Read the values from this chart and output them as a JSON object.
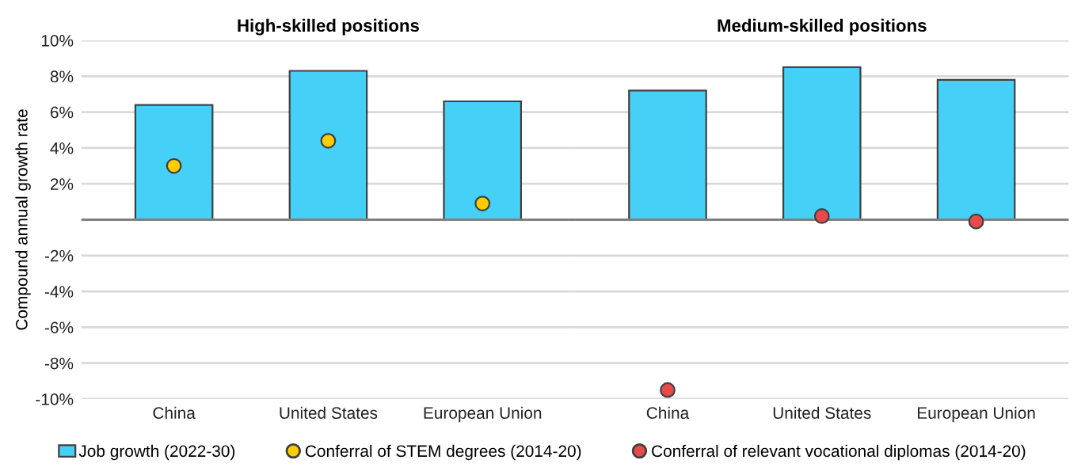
{
  "chart_data": [
    {
      "type": "bar",
      "title": "High-skilled positions",
      "ylabel": "Compound annual growth rate",
      "categories": [
        "China",
        "United States",
        "European Union"
      ],
      "series": [
        {
          "name": "Job growth (2022-30)",
          "color": "#45d0f7",
          "values": [
            6.4,
            8.3,
            6.6
          ]
        },
        {
          "name": "Conferral of STEM degrees (2014-20)",
          "type": "scatter",
          "color": "#ffcc00",
          "values": [
            3.0,
            4.4,
            0.9
          ]
        }
      ],
      "ylim": [
        -10,
        10
      ],
      "yticks": [
        {
          "value": 10,
          "label": "10%"
        },
        {
          "value": 8,
          "label": "8%"
        },
        {
          "value": 6,
          "label": "6%"
        },
        {
          "value": 4,
          "label": "4%"
        },
        {
          "value": 2,
          "label": "2%"
        },
        {
          "value": 0,
          "label": null
        },
        {
          "value": -2,
          "label": "-2%"
        },
        {
          "value": -4,
          "label": "-4%"
        },
        {
          "value": -6,
          "label": "-6%"
        },
        {
          "value": -8,
          "label": "-8%"
        },
        {
          "value": -10,
          "label": "-10%"
        }
      ],
      "grid": "y",
      "marker": "circle",
      "legend": "bottom",
      "ref_lines": [
        {
          "axis": "y",
          "value": 0,
          "color": "#808080"
        }
      ]
    },
    {
      "type": "bar",
      "title": "Medium-skilled positions",
      "categories": [
        "China",
        "United States",
        "European Union"
      ],
      "series": [
        {
          "name": "Job growth (2022-30)",
          "color": "#45d0f7",
          "values": [
            7.2,
            8.5,
            7.8
          ]
        },
        {
          "name": "Conferral of relevant vocational diplomas (2014-20)",
          "type": "scatter",
          "color": "#e84a4a",
          "values": [
            -9.5,
            0.2,
            -0.1
          ]
        }
      ],
      "ylim": [
        -10,
        10
      ],
      "yticks": [
        {
          "value": 10,
          "label": null
        },
        {
          "value": 8,
          "label": null
        },
        {
          "value": 6,
          "label": null
        },
        {
          "value": 4,
          "label": null
        },
        {
          "value": 2,
          "label": null
        },
        {
          "value": 0,
          "label": null
        },
        {
          "value": -2,
          "label": null
        },
        {
          "value": -4,
          "label": null
        },
        {
          "value": -6,
          "label": null
        },
        {
          "value": -8,
          "label": null
        },
        {
          "value": -10,
          "label": null
        }
      ],
      "grid": "y",
      "marker": "circle",
      "legend": "bottom",
      "tick_labels": "x",
      "ref_lines": [
        {
          "axis": "y",
          "value": 0,
          "color": "#808080"
        }
      ]
    }
  ]
}
